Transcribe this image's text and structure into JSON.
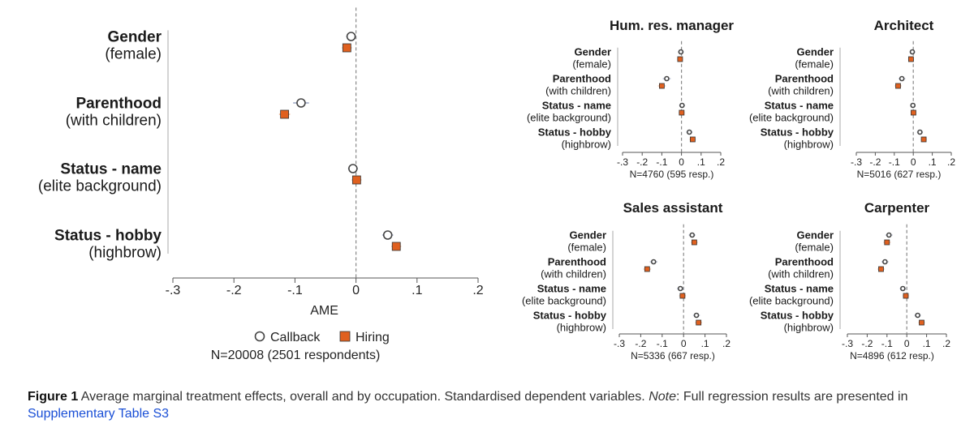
{
  "legend": {
    "callback": "Callback",
    "hiring": "Hiring"
  },
  "colors": {
    "hiring_fill": "#e0601f",
    "callback_stroke": "#444444",
    "zero_line": "#888888"
  },
  "caption": {
    "figure_label": "Figure 1",
    "text1": " Average marginal treatment effects, overall and by occupation. Standardised dependent variables. ",
    "note_label": "Note",
    "text2": ": Full regression results are presented in ",
    "link": "Supplementary Table S3"
  },
  "chart_data": [
    {
      "panel": "overall",
      "type": "scatter",
      "title": "",
      "xlabel": "AME",
      "n_label": "N=20008 (2501 respondents)",
      "xlim": [
        -0.3,
        0.2
      ],
      "xticks": [
        -0.3,
        -0.2,
        -0.1,
        0,
        0.1,
        0.2
      ],
      "xtick_labels": [
        "-.3",
        "-.2",
        "-.1",
        "0",
        ".1",
        ".2"
      ],
      "categories": [
        {
          "label": "Gender",
          "sub": "(female)"
        },
        {
          "label": "Parenthood",
          "sub": "(with children)"
        },
        {
          "label": "Status - name",
          "sub": "(elite background)"
        },
        {
          "label": "Status - hobby",
          "sub": "(highbrow)"
        }
      ],
      "series": [
        {
          "name": "Callback",
          "values": [
            -0.008,
            -0.09,
            -0.005,
            0.052
          ],
          "ci_low": [
            -0.016,
            -0.103,
            -0.013,
            0.043
          ],
          "ci_high": [
            0.0,
            -0.077,
            0.003,
            0.061
          ]
        },
        {
          "name": "Hiring",
          "values": [
            -0.015,
            -0.117,
            0.001,
            0.066
          ],
          "ci_low": [
            -0.023,
            -0.126,
            -0.007,
            0.058
          ],
          "ci_high": [
            -0.007,
            -0.108,
            0.009,
            0.074
          ]
        }
      ]
    },
    {
      "panel": "hum-res-manager",
      "type": "scatter",
      "title": "Hum. res. manager",
      "n_label": "N=4760 (595 resp.)",
      "xlim": [
        -0.3,
        0.2
      ],
      "xticks": [
        -0.3,
        -0.2,
        -0.1,
        0,
        0.1,
        0.2
      ],
      "xtick_labels": [
        "-.3",
        "-.2",
        "-.1",
        "0",
        ".1",
        ".2"
      ],
      "categories": [
        {
          "label": "Gender",
          "sub": "(female)"
        },
        {
          "label": "Parenthood",
          "sub": "(with children)"
        },
        {
          "label": "Status - name",
          "sub": "(elite background)"
        },
        {
          "label": "Status - hobby",
          "sub": "(highbrow)"
        }
      ],
      "series": [
        {
          "name": "Callback",
          "values": [
            -0.003,
            -0.075,
            0.003,
            0.04
          ],
          "ci_low": [
            -0.018,
            -0.095,
            -0.012,
            0.024
          ],
          "ci_high": [
            0.012,
            -0.055,
            0.018,
            0.056
          ]
        },
        {
          "name": "Hiring",
          "values": [
            -0.007,
            -0.1,
            0.001,
            0.057
          ],
          "ci_low": [
            -0.022,
            -0.12,
            -0.014,
            0.041
          ],
          "ci_high": [
            0.008,
            -0.08,
            0.016,
            0.073
          ]
        }
      ]
    },
    {
      "panel": "architect",
      "type": "scatter",
      "title": "Architect",
      "n_label": "N=5016 (627 resp.)",
      "xlim": [
        -0.3,
        0.2
      ],
      "xticks": [
        -0.3,
        -0.2,
        -0.1,
        0,
        0.1,
        0.2
      ],
      "xtick_labels": [
        "-.3",
        "-.2",
        "-.1",
        "0",
        ".1",
        ".2"
      ],
      "categories": [
        {
          "label": "Gender",
          "sub": "(female)"
        },
        {
          "label": "Parenthood",
          "sub": "(with children)"
        },
        {
          "label": "Status - name",
          "sub": "(elite background)"
        },
        {
          "label": "Status - hobby",
          "sub": "(highbrow)"
        }
      ],
      "series": [
        {
          "name": "Callback",
          "values": [
            -0.005,
            -0.06,
            -0.002,
            0.035
          ],
          "ci_low": [
            -0.02,
            -0.078,
            -0.016,
            0.019
          ],
          "ci_high": [
            0.01,
            -0.042,
            0.012,
            0.051
          ]
        },
        {
          "name": "Hiring",
          "values": [
            -0.012,
            -0.08,
            0.001,
            0.055
          ],
          "ci_low": [
            -0.027,
            -0.098,
            -0.013,
            0.039
          ],
          "ci_high": [
            0.003,
            -0.062,
            0.015,
            0.071
          ]
        }
      ]
    },
    {
      "panel": "sales-assistant",
      "type": "scatter",
      "title": "Sales assistant",
      "n_label": "N=5336 (667 resp.)",
      "xlim": [
        -0.3,
        0.2
      ],
      "xticks": [
        -0.3,
        -0.2,
        -0.1,
        0,
        0.1,
        0.2
      ],
      "xtick_labels": [
        "-.3",
        "-.2",
        "-.1",
        "0",
        ".1",
        ".2"
      ],
      "categories": [
        {
          "label": "Gender",
          "sub": "(female)"
        },
        {
          "label": "Parenthood",
          "sub": "(with children)"
        },
        {
          "label": "Status - name",
          "sub": "(elite background)"
        },
        {
          "label": "Status - hobby",
          "sub": "(highbrow)"
        }
      ],
      "series": [
        {
          "name": "Callback",
          "values": [
            0.04,
            -0.14,
            -0.015,
            0.06
          ],
          "ci_low": [
            0.024,
            -0.158,
            -0.031,
            0.044
          ],
          "ci_high": [
            0.056,
            -0.122,
            0.001,
            0.076
          ]
        },
        {
          "name": "Hiring",
          "values": [
            0.05,
            -0.17,
            -0.005,
            0.07
          ],
          "ci_low": [
            0.034,
            -0.188,
            -0.021,
            0.054
          ],
          "ci_high": [
            0.066,
            -0.152,
            0.011,
            0.086
          ]
        }
      ]
    },
    {
      "panel": "carpenter",
      "type": "scatter",
      "title": "Carpenter",
      "n_label": "N=4896 (612 resp.)",
      "xlim": [
        -0.3,
        0.2
      ],
      "xticks": [
        -0.3,
        -0.2,
        -0.1,
        0,
        0.1,
        0.2
      ],
      "xtick_labels": [
        "-.3",
        "-.2",
        "-.1",
        "0",
        ".1",
        ".2"
      ],
      "categories": [
        {
          "label": "Gender",
          "sub": "(female)"
        },
        {
          "label": "Parenthood",
          "sub": "(with children)"
        },
        {
          "label": "Status - name",
          "sub": "(elite background)"
        },
        {
          "label": "Status - hobby",
          "sub": "(highbrow)"
        }
      ],
      "series": [
        {
          "name": "Callback",
          "values": [
            -0.09,
            -0.11,
            -0.02,
            0.055
          ],
          "ci_low": [
            -0.108,
            -0.128,
            -0.036,
            0.039
          ],
          "ci_high": [
            -0.072,
            -0.092,
            -0.004,
            0.071
          ]
        },
        {
          "name": "Hiring",
          "values": [
            -0.1,
            -0.13,
            -0.005,
            0.075
          ],
          "ci_low": [
            -0.118,
            -0.148,
            -0.021,
            0.059
          ],
          "ci_high": [
            -0.082,
            -0.112,
            0.011,
            0.091
          ]
        }
      ]
    }
  ]
}
